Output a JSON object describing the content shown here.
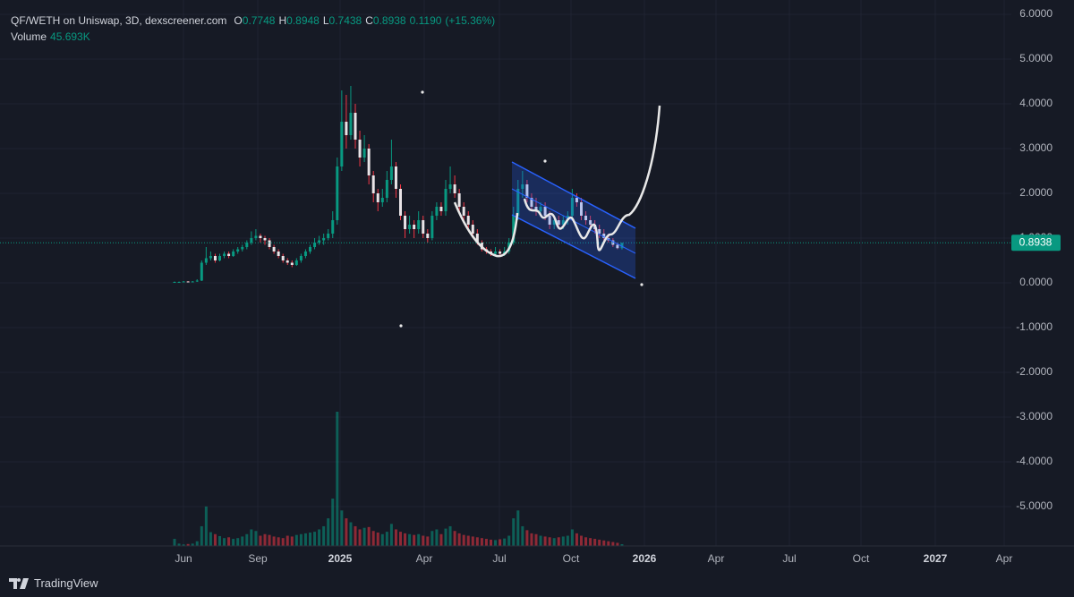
{
  "chart_data": {
    "type": "candlestick",
    "title": "QF/WETH on Uniswap, 3D, dexscreener.com",
    "ohlc_letters": [
      "O",
      "H",
      "L",
      "C"
    ],
    "change": {
      "value": 0.119,
      "label": "0.1190"
    },
    "change_pct": {
      "value": 15.36,
      "label": "(+15.36%)"
    },
    "volume_name": "Volume",
    "volume_value_label": "45.693K",
    "up_color": "#089981",
    "down_color": "#f23645",
    "ylim": [
      -5.88,
      6.32
    ],
    "yticks": [
      {
        "value": 6,
        "label": "6.0000"
      },
      {
        "value": 5,
        "label": "5.0000"
      },
      {
        "value": 4,
        "label": "4.0000"
      },
      {
        "value": 3,
        "label": "3.0000"
      },
      {
        "value": 2,
        "label": "2.0000"
      },
      {
        "value": 1,
        "label": "1.0000"
      },
      {
        "value": 0,
        "label": "0.0000"
      },
      {
        "value": -1,
        "label": "-1.0000"
      },
      {
        "value": -2,
        "label": "-2.0000"
      },
      {
        "value": -3,
        "label": "-3.0000"
      },
      {
        "value": -4,
        "label": "-4.0000"
      },
      {
        "value": -5,
        "label": "-5.0000"
      }
    ],
    "xticks": [
      "Jun",
      "Sep",
      "2025",
      "Apr",
      "Jul",
      "Oct",
      "2026",
      "Apr",
      "Jul",
      "Oct",
      "2027",
      "Apr"
    ],
    "grid": true,
    "candles": [
      [
        0.02,
        0.03,
        0.01,
        0.02
      ],
      [
        0.02,
        0.03,
        0.01,
        0.02
      ],
      [
        0.02,
        0.04,
        0.02,
        0.03
      ],
      [
        0.03,
        0.04,
        0.01,
        0.02
      ],
      [
        0.02,
        0.04,
        0.02,
        0.03
      ],
      [
        0.03,
        0.08,
        0.02,
        0.05
      ],
      [
        0.05,
        0.5,
        0.04,
        0.45
      ],
      [
        0.45,
        0.8,
        0.4,
        0.55
      ],
      [
        0.55,
        0.7,
        0.5,
        0.6
      ],
      [
        0.6,
        0.65,
        0.45,
        0.5
      ],
      [
        0.5,
        0.65,
        0.48,
        0.6
      ],
      [
        0.6,
        0.7,
        0.55,
        0.65
      ],
      [
        0.65,
        0.7,
        0.55,
        0.6
      ],
      [
        0.6,
        0.75,
        0.58,
        0.7
      ],
      [
        0.7,
        0.8,
        0.65,
        0.75
      ],
      [
        0.75,
        0.85,
        0.7,
        0.8
      ],
      [
        0.8,
        0.95,
        0.75,
        0.9
      ],
      [
        0.9,
        1.15,
        0.85,
        1.0
      ],
      [
        1.0,
        1.2,
        0.95,
        1.05
      ],
      [
        1.05,
        1.1,
        0.9,
        1.0
      ],
      [
        1.0,
        1.05,
        0.85,
        0.95
      ],
      [
        0.95,
        1.0,
        0.75,
        0.8
      ],
      [
        0.8,
        0.85,
        0.65,
        0.7
      ],
      [
        0.7,
        0.75,
        0.55,
        0.6
      ],
      [
        0.6,
        0.65,
        0.45,
        0.5
      ],
      [
        0.5,
        0.55,
        0.4,
        0.45
      ],
      [
        0.45,
        0.5,
        0.35,
        0.4
      ],
      [
        0.4,
        0.55,
        0.38,
        0.5
      ],
      [
        0.5,
        0.65,
        0.45,
        0.6
      ],
      [
        0.6,
        0.75,
        0.55,
        0.7
      ],
      [
        0.7,
        0.85,
        0.65,
        0.8
      ],
      [
        0.8,
        1.0,
        0.75,
        0.9
      ],
      [
        0.9,
        1.05,
        0.85,
        0.95
      ],
      [
        0.95,
        1.1,
        0.85,
        1.0
      ],
      [
        1.0,
        1.2,
        0.95,
        1.1
      ],
      [
        1.1,
        1.6,
        1.0,
        1.4
      ],
      [
        1.4,
        2.8,
        1.3,
        2.6
      ],
      [
        2.6,
        4.3,
        2.5,
        3.6
      ],
      [
        3.6,
        4.2,
        3.0,
        3.3
      ],
      [
        3.3,
        4.4,
        3.2,
        3.8
      ],
      [
        3.8,
        4.0,
        3.0,
        3.2
      ],
      [
        3.2,
        3.4,
        2.6,
        2.8
      ],
      [
        2.8,
        3.3,
        2.7,
        3.0
      ],
      [
        3.0,
        3.1,
        2.2,
        2.4
      ],
      [
        2.4,
        2.5,
        1.8,
        2.0
      ],
      [
        2.0,
        2.1,
        1.6,
        1.8
      ],
      [
        1.8,
        2.1,
        1.7,
        1.9
      ],
      [
        1.9,
        2.5,
        1.8,
        2.3
      ],
      [
        2.3,
        3.2,
        2.2,
        2.6
      ],
      [
        2.6,
        2.7,
        1.9,
        2.1
      ],
      [
        2.1,
        2.2,
        1.4,
        1.5
      ],
      [
        1.5,
        1.6,
        1.0,
        1.2
      ],
      [
        1.2,
        1.5,
        1.1,
        1.3
      ],
      [
        1.3,
        1.4,
        1.0,
        1.2
      ],
      [
        1.2,
        1.6,
        1.1,
        1.4
      ],
      [
        1.4,
        1.5,
        1.0,
        1.1
      ],
      [
        1.1,
        1.2,
        0.9,
        1.0
      ],
      [
        1.0,
        1.6,
        0.95,
        1.5
      ],
      [
        1.5,
        1.8,
        1.4,
        1.7
      ],
      [
        1.7,
        1.8,
        1.5,
        1.6
      ],
      [
        1.6,
        2.3,
        1.5,
        2.1
      ],
      [
        2.1,
        2.6,
        2.0,
        2.2
      ],
      [
        2.2,
        2.4,
        1.9,
        2.0
      ],
      [
        2.0,
        2.1,
        1.6,
        1.7
      ],
      [
        1.7,
        1.8,
        1.4,
        1.5
      ],
      [
        1.5,
        1.6,
        1.2,
        1.3
      ],
      [
        1.3,
        1.4,
        1.0,
        1.1
      ],
      [
        1.1,
        1.2,
        0.85,
        0.9
      ],
      [
        0.9,
        0.95,
        0.7,
        0.75
      ],
      [
        0.75,
        0.8,
        0.65,
        0.7
      ],
      [
        0.7,
        0.75,
        0.6,
        0.65
      ],
      [
        0.65,
        0.8,
        0.6,
        0.7
      ],
      [
        0.7,
        0.75,
        0.6,
        0.65
      ],
      [
        0.65,
        0.8,
        0.6,
        0.7
      ],
      [
        0.7,
        1.0,
        0.65,
        0.9
      ],
      [
        0.9,
        1.7,
        0.85,
        1.5
      ],
      [
        1.5,
        2.3,
        1.4,
        2.1
      ],
      [
        2.1,
        2.5,
        1.9,
        2.2
      ],
      [
        2.2,
        2.3,
        1.8,
        1.9
      ],
      [
        1.9,
        2.0,
        1.6,
        1.7
      ],
      [
        1.7,
        1.9,
        1.5,
        1.6
      ],
      [
        1.6,
        1.8,
        1.5,
        1.7
      ],
      [
        1.7,
        1.8,
        1.4,
        1.5
      ],
      [
        1.5,
        1.6,
        1.2,
        1.3
      ],
      [
        1.3,
        1.5,
        1.2,
        1.4
      ],
      [
        1.4,
        1.5,
        1.2,
        1.3
      ],
      [
        1.3,
        1.5,
        1.2,
        1.4
      ],
      [
        1.4,
        1.6,
        1.3,
        1.5
      ],
      [
        1.5,
        2.1,
        1.4,
        1.9
      ],
      [
        1.9,
        2.0,
        1.7,
        1.8
      ],
      [
        1.8,
        1.9,
        1.4,
        1.5
      ],
      [
        1.5,
        1.6,
        1.3,
        1.4
      ],
      [
        1.4,
        1.5,
        1.2,
        1.3
      ],
      [
        1.3,
        1.4,
        1.1,
        1.2
      ],
      [
        1.2,
        1.3,
        1.0,
        1.1
      ],
      [
        1.1,
        1.2,
        0.95,
        1.0
      ],
      [
        1.0,
        1.1,
        0.9,
        0.95
      ],
      [
        0.95,
        1.0,
        0.8,
        0.85
      ],
      [
        0.85,
        0.9,
        0.75,
        0.7748
      ],
      [
        0.7748,
        0.8948,
        0.7438,
        0.8938
      ]
    ],
    "volume": [
      180,
      60,
      40,
      50,
      60,
      120,
      500,
      1000,
      350,
      300,
      250,
      200,
      220,
      180,
      200,
      240,
      300,
      420,
      380,
      260,
      300,
      280,
      240,
      220,
      200,
      260,
      240,
      280,
      300,
      320,
      340,
      360,
      420,
      500,
      700,
      1200,
      3400,
      900,
      700,
      600,
      500,
      420,
      460,
      480,
      380,
      340,
      300,
      360,
      560,
      420,
      360,
      320,
      300,
      280,
      300,
      260,
      240,
      380,
      420,
      300,
      440,
      500,
      380,
      320,
      280,
      260,
      240,
      220,
      200,
      180,
      160,
      150,
      170,
      190,
      260,
      700,
      900,
      500,
      400,
      320,
      300,
      260,
      240,
      220,
      200,
      220,
      240,
      260,
      420,
      320,
      260,
      220,
      200,
      180,
      160,
      140,
      120,
      100,
      80,
      45.693
    ]
  },
  "footer": {
    "brand": "TradingView"
  }
}
